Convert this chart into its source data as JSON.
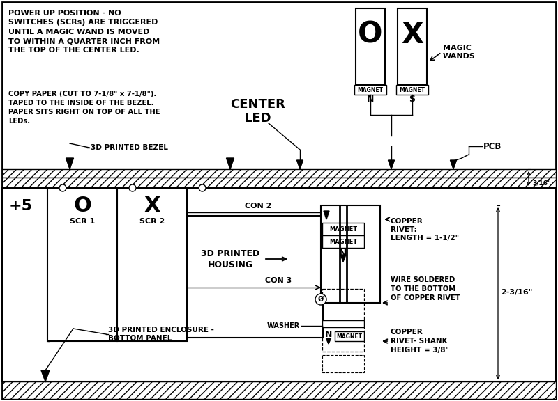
{
  "bg_color": "#ffffff",
  "text_color": "#000000",
  "top_text1": "POWER UP POSITION - NO\nSWITCHES (SCRs) ARE TRIGGERED\nUNTIL A MAGIC WAND IS MOVED\nTO WITHIN A QUARTER INCH FROM\nTHE TOP OF THE CENTER LED.",
  "top_text2": "COPY PAPER (CUT TO 7-1/8\" x 7-1/8\").\nTAPED TO THE INSIDE OF THE BEZEL.\nPAPER SITS RIGHT ON TOP OF ALL THE\nLEDs.",
  "bezel_label": "3D PRINTED BEZEL",
  "center_led": "CENTER\nLED",
  "magic_wands": "MAGIC\nWANDS",
  "pcb": "PCB",
  "three16": "3/16\"",
  "con2": "CON 2",
  "con3": "CON 3",
  "housing": "3D PRINTED\nHOUSING",
  "enclosure": "3D PRINTED ENCLOSURE -\nBOTTOM PANEL",
  "copper_rivet1": "COPPER\nRIVET:\nLENGTH = 1-1/2\"",
  "dim_23_16": "2-3/16\"",
  "wire_soldered": "WIRE SOLDERED\nTO THE BOTTOM\nOF COPPER RIVET",
  "copper_rivet2": "COPPER\nRIVET- SHANK\nHEIGHT = 3/8\"",
  "washer": "WASHER",
  "scr1": "SCR 1",
  "scr2": "SCR 2",
  "magnet": "MAGNET",
  "N": "N",
  "S": "S",
  "plus5": "+5",
  "O": "O",
  "X": "X"
}
